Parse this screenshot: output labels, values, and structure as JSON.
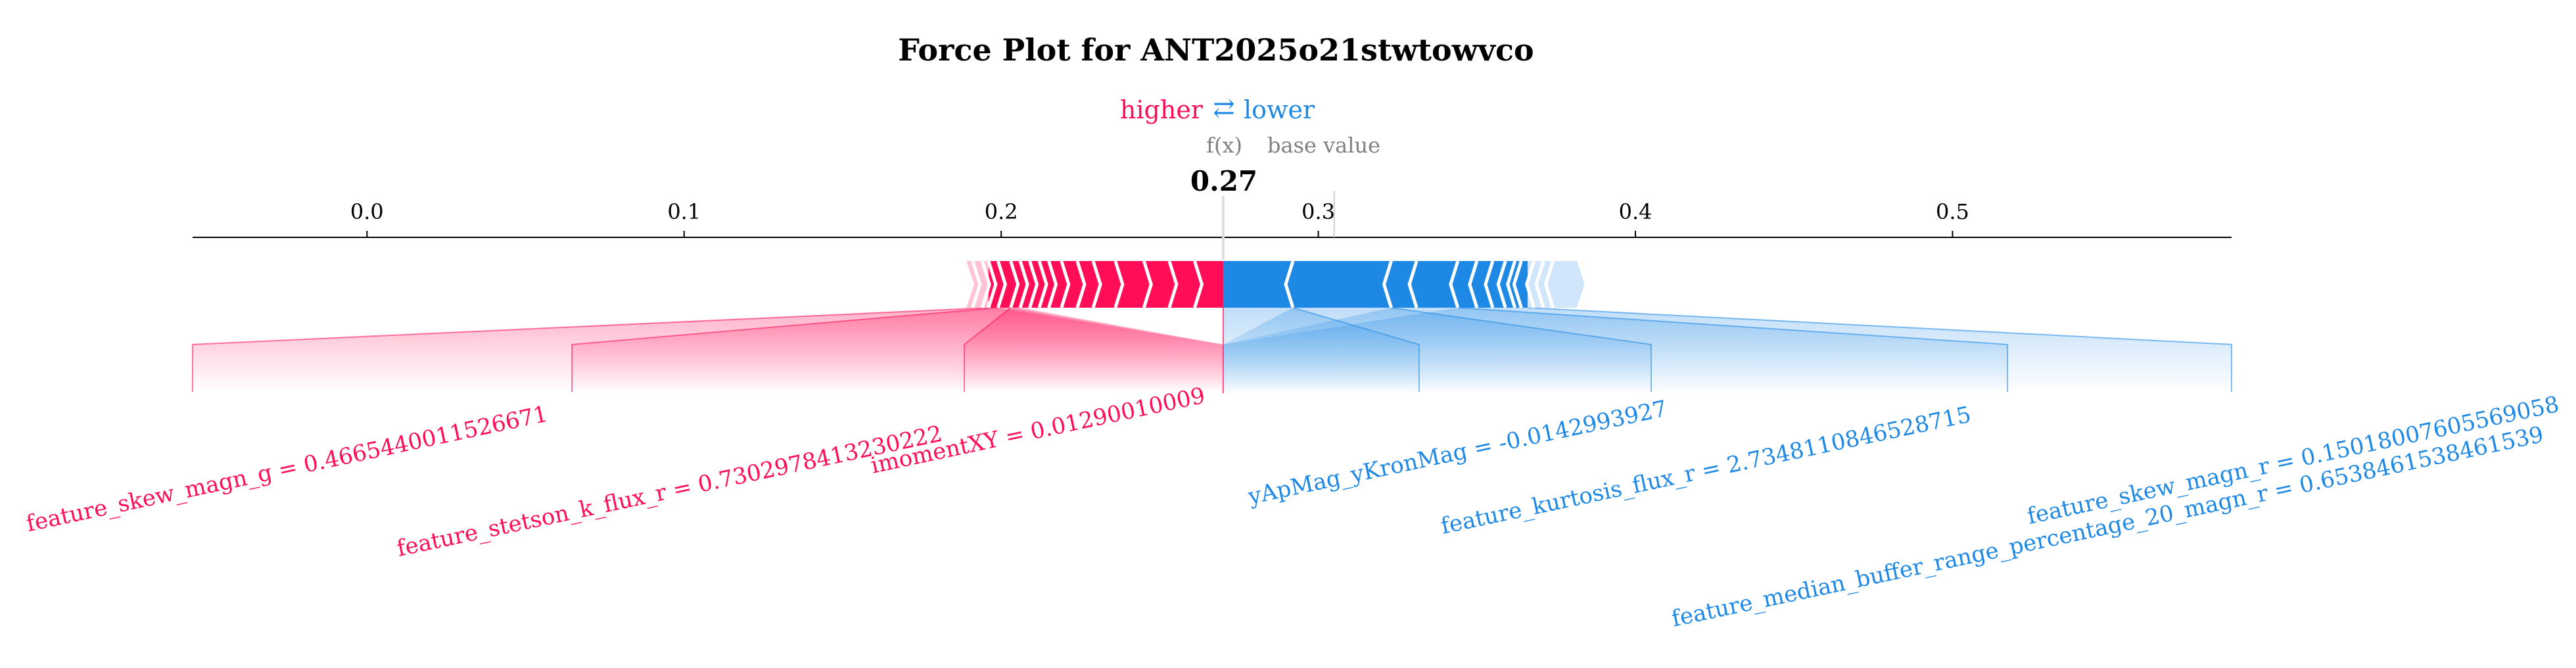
{
  "colors": {
    "higher": "#ff0d57",
    "lower": "#1e88e5",
    "higher_light": "#ffc3d5",
    "lower_light": "#d1e6fa",
    "axis": "#000000",
    "muted": "#808080"
  },
  "chart_data": {
    "type": "force",
    "title": "Force Plot for ANT2025o21stwtowvco",
    "legend": {
      "higher_label": "higher",
      "arrows": "⇄",
      "lower_label": "lower"
    },
    "fx_label": "f(x)",
    "base_value_label": "base value",
    "fx_value_label": "0.27",
    "output_value": 0.27,
    "base_value": 0.305,
    "xlim": [
      -0.055,
      0.588
    ],
    "ticks": [
      0.0,
      0.1,
      0.2,
      0.3,
      0.4,
      0.5
    ],
    "tick_labels": [
      "0.0",
      "0.1",
      "0.2",
      "0.3",
      "0.4",
      "0.5"
    ],
    "bar_range": [
      0.189,
      0.384
    ],
    "higher_features": [
      {
        "label": "feature_skew_magn_g = 0.4665440011526671",
        "start": 0.196,
        "end": 0.199
      },
      {
        "label": "feature_stetson_k_flux_r = 0.7302978413230222",
        "start": 0.199,
        "end": 0.203
      },
      {
        "label": "imomentXY = 0.01290010009",
        "start": 0.203,
        "end": 0.206
      }
    ],
    "lower_features": [
      {
        "label": "yApMag_yKronMag = -0.0142993927",
        "start": 0.27,
        "end": 0.292
      },
      {
        "label": "feature_kurtosis_flux_r = 2.7348110846528715",
        "start": 0.292,
        "end": 0.323
      },
      {
        "label": "feature_median_buffer_range_percentage_20_magn_r = 0.6538461538461539",
        "start": 0.323,
        "end": 0.344
      },
      {
        "label": "feature_skew_magn_r = 0.15018007605569058",
        "start": 0.344,
        "end": 0.366
      }
    ]
  }
}
